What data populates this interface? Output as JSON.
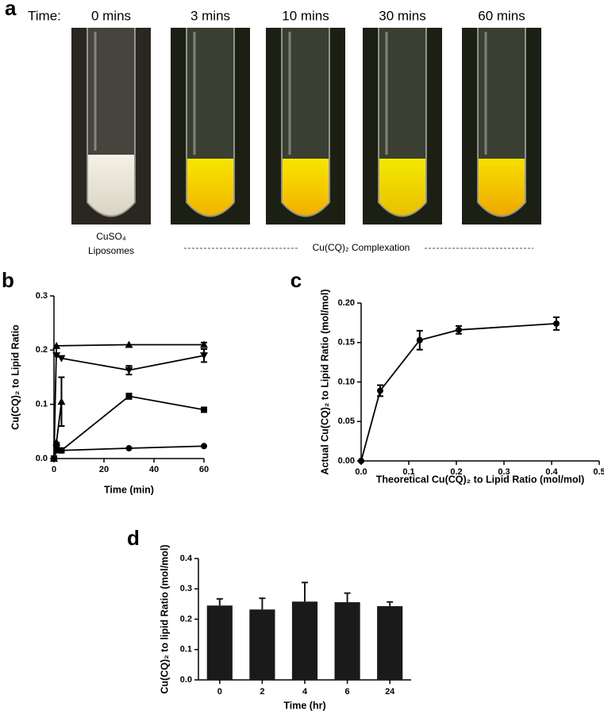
{
  "figure_a": {
    "panel_label": "a",
    "time_label": "Time:",
    "times": [
      "0 mins",
      "3 mins",
      "10 mins",
      "30 mins",
      "60 mins"
    ],
    "caption_left": [
      "CuSO₄",
      "Liposomes"
    ],
    "caption_right": "Cu(CQ)₂ Complexation"
  },
  "chart_data": [
    {
      "type": "line",
      "panel_label": "b",
      "x_label": "Time (min)",
      "y_label": "Cu(CQ)₂ to Lipid Ratio",
      "xlim": [
        0,
        60
      ],
      "xticks": [
        0,
        20,
        40,
        60
      ],
      "ylim": [
        0,
        0.3
      ],
      "yticks": [
        {
          "value": 0,
          "label": "0.0"
        },
        0.1,
        0.2,
        0.3
      ],
      "series": [
        {
          "color": "#000000",
          "marker": "triangle",
          "x": [
            0,
            1,
            30,
            60
          ],
          "values": [
            0,
            0.208,
            0.21,
            0.21
          ],
          "errors": [
            0,
            0,
            0,
            0.004
          ]
        },
        {
          "color": "#000000",
          "marker": "triangle-down",
          "x": [
            1,
            3,
            30,
            60
          ],
          "values": [
            0.19,
            0.185,
            0.163,
            0.19
          ],
          "errors": [
            0,
            0,
            0.008,
            0.012
          ]
        },
        {
          "color": "#000000",
          "marker": "triangle",
          "x": [
            0,
            1,
            3
          ],
          "values": [
            0,
            0.03,
            0.105
          ],
          "errors": [
            0,
            0,
            0.045
          ]
        },
        {
          "color": "#000000",
          "marker": "square",
          "x": [
            0,
            1,
            3,
            30,
            60
          ],
          "values": [
            0,
            0.025,
            0.015,
            0.115,
            0.09
          ],
          "errors": [
            0,
            0,
            0,
            0.005,
            0.003
          ]
        },
        {
          "color": "#000000",
          "marker": "circle",
          "x": [
            0,
            1,
            3,
            30,
            60
          ],
          "values": [
            0,
            0.015,
            0.015,
            0.019,
            0.023
          ],
          "errors": [
            0,
            0,
            0,
            0,
            0
          ]
        }
      ]
    },
    {
      "type": "line",
      "panel_label": "c",
      "x_label": "Theoretical Cu(CQ)₂ to Lipid Ratio (mol/mol)",
      "y_label": "Actual Cu(CQ)₂ to Lipid Ratio (mol/mol)",
      "xlim": [
        0,
        0.5
      ],
      "xticks": [
        {
          "value": 0,
          "label": "0.0"
        },
        0.1,
        0.2,
        0.3,
        0.4,
        0.5
      ],
      "ylim": [
        0,
        0.2
      ],
      "yticks": [
        {
          "value": 0,
          "label": "0.00"
        },
        0.05,
        {
          "value": 0.1,
          "label": "0.10"
        },
        0.15,
        {
          "value": 0.2,
          "label": "0.20"
        }
      ],
      "series": [
        {
          "color": "#000000",
          "marker": "circle",
          "x": [
            0,
            0.04,
            0.123,
            0.205,
            0.41
          ],
          "values": [
            0,
            0.089,
            0.153,
            0.166,
            0.174
          ],
          "errors": [
            0,
            0.007,
            0.012,
            0.005,
            0.008
          ]
        }
      ]
    },
    {
      "type": "bar",
      "panel_label": "d",
      "x_label": "Time (hr)",
      "y_label": "Cu(CQ)₂ to lipid Ratio (mol/mol)",
      "categories": [
        "0",
        "2",
        "4",
        "6",
        "24"
      ],
      "values": [
        0.245,
        0.232,
        0.258,
        0.256,
        0.243
      ],
      "errors": [
        0.022,
        0.037,
        0.063,
        0.03,
        0.014
      ],
      "color": "#1a1a1a",
      "ylim": [
        0,
        0.4
      ],
      "yticks": [
        {
          "value": 0,
          "label": "0.0"
        },
        0.1,
        0.2,
        0.3,
        0.4
      ]
    }
  ]
}
